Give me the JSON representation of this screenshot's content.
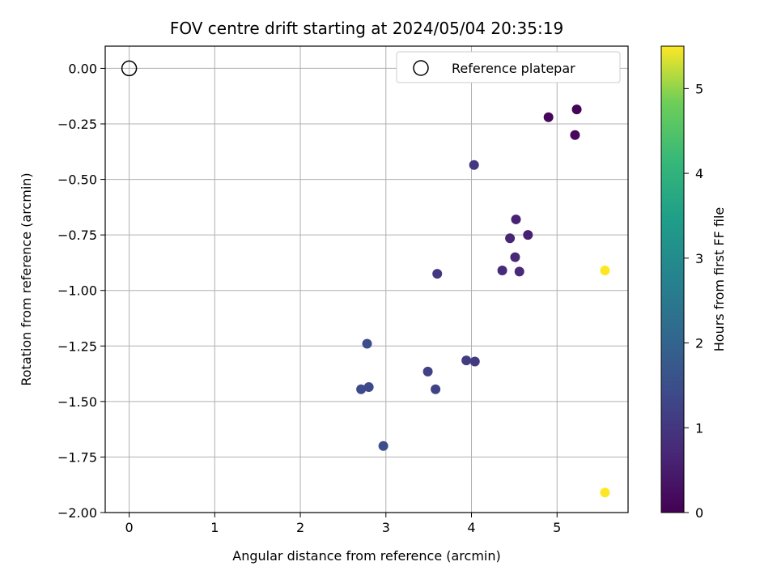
{
  "chart_data": {
    "type": "scatter",
    "title": "FOV centre drift starting at 2024/05/04 20:35:19",
    "xlabel": "Angular distance from reference (arcmin)",
    "ylabel": "Rotation from reference (arcmin)",
    "xlim": [
      -0.28,
      5.83
    ],
    "ylim": [
      -2.0,
      0.1
    ],
    "xticks": [
      "0",
      "1",
      "2",
      "3",
      "4",
      "5"
    ],
    "yticks": [
      "0.00",
      "−0.25",
      "−0.50",
      "−0.75",
      "−1.00",
      "−1.25",
      "−1.50",
      "−1.75",
      "−2.00"
    ],
    "grid": true,
    "legend": {
      "placement": "top-right",
      "entries": [
        "Reference platepar"
      ]
    },
    "reference": {
      "x": 0,
      "y": 0
    },
    "colorbar": {
      "label": "Hours from first FF file",
      "range": [
        0,
        5.5
      ],
      "ticks": [
        "0",
        "1",
        "2",
        "3",
        "4",
        "5"
      ],
      "colormap": "viridis"
    },
    "points": [
      {
        "x": 5.23,
        "y": -0.185,
        "hours": 0.05
      },
      {
        "x": 4.9,
        "y": -0.22,
        "hours": 0.1
      },
      {
        "x": 5.21,
        "y": -0.3,
        "hours": 0.15
      },
      {
        "x": 4.03,
        "y": -0.435,
        "hours": 1.0
      },
      {
        "x": 4.52,
        "y": -0.68,
        "hours": 0.6
      },
      {
        "x": 4.66,
        "y": -0.75,
        "hours": 0.55
      },
      {
        "x": 4.45,
        "y": -0.765,
        "hours": 0.65
      },
      {
        "x": 4.51,
        "y": -0.85,
        "hours": 0.7
      },
      {
        "x": 4.36,
        "y": -0.91,
        "hours": 0.75
      },
      {
        "x": 4.56,
        "y": -0.915,
        "hours": 0.72
      },
      {
        "x": 3.6,
        "y": -0.925,
        "hours": 1.05
      },
      {
        "x": 5.56,
        "y": -0.91,
        "hours": 5.5
      },
      {
        "x": 2.78,
        "y": -1.24,
        "hours": 1.45
      },
      {
        "x": 3.94,
        "y": -1.315,
        "hours": 1.1
      },
      {
        "x": 4.04,
        "y": -1.32,
        "hours": 1.08
      },
      {
        "x": 3.49,
        "y": -1.365,
        "hours": 1.2
      },
      {
        "x": 2.71,
        "y": -1.445,
        "hours": 1.4
      },
      {
        "x": 2.8,
        "y": -1.435,
        "hours": 1.38
      },
      {
        "x": 3.58,
        "y": -1.445,
        "hours": 1.22
      },
      {
        "x": 2.97,
        "y": -1.7,
        "hours": 1.5
      },
      {
        "x": 5.56,
        "y": -1.91,
        "hours": 5.5
      }
    ]
  }
}
